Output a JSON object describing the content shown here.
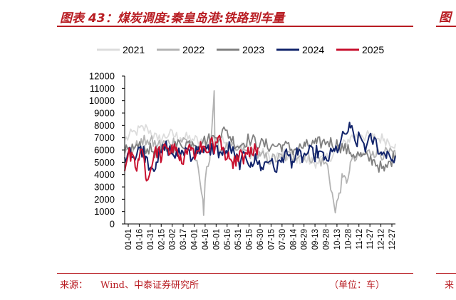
{
  "header": {
    "title": "图表 43：煤炭调度:秦皇岛港:铁路到车量",
    "right_fragment": "图"
  },
  "footer": {
    "source_label": "来源：",
    "source_text": "Wind、中泰证券研究所",
    "unit": "（单位：车）",
    "right_fragment": "来"
  },
  "colors": {
    "accent": "#b81c22",
    "s2021": "#dcdcdc",
    "s2022": "#b3b3b3",
    "s2023": "#808080",
    "s2024": "#12246b",
    "s2025": "#c8102e"
  },
  "chart_data": {
    "type": "line",
    "title": "",
    "xlabel": "",
    "ylabel": "",
    "ylim": [
      0,
      12000
    ],
    "yticks": [
      0,
      1000,
      2000,
      3000,
      4000,
      5000,
      6000,
      7000,
      8000,
      9000,
      10000,
      11000,
      12000
    ],
    "xtick_labels": [
      "01-01",
      "01-16",
      "01-31",
      "02-15",
      "03-02",
      "03-17",
      "04-01",
      "04-16",
      "05-01",
      "05-16",
      "05-31",
      "06-15",
      "06-30",
      "07-15",
      "07-30",
      "08-14",
      "08-29",
      "09-13",
      "09-28",
      "10-13",
      "10-28",
      "11-12",
      "11-27",
      "12-12",
      "12-27"
    ],
    "x_domain": [
      1,
      361
    ],
    "legend": {
      "position": "top",
      "entries": [
        "2021",
        "2022",
        "2023",
        "2024",
        "2025"
      ]
    },
    "grid": false,
    "series": [
      {
        "name": "2021",
        "points": [
          [
            1,
            6800
          ],
          [
            15,
            7500
          ],
          [
            31,
            7800
          ],
          [
            45,
            6800
          ],
          [
            60,
            7300
          ],
          [
            75,
            7000
          ],
          [
            91,
            6900
          ],
          [
            105,
            6500
          ],
          [
            121,
            6900
          ],
          [
            135,
            6600
          ],
          [
            151,
            6400
          ],
          [
            166,
            6100
          ],
          [
            181,
            5800
          ],
          [
            196,
            5300
          ],
          [
            211,
            5600
          ],
          [
            226,
            5400
          ],
          [
            241,
            5200
          ],
          [
            256,
            5000
          ],
          [
            271,
            5400
          ],
          [
            286,
            6000
          ],
          [
            301,
            7000
          ],
          [
            316,
            7200
          ],
          [
            331,
            7000
          ],
          [
            346,
            6900
          ],
          [
            361,
            6500
          ]
        ]
      },
      {
        "name": "2022",
        "points": [
          [
            1,
            5700
          ],
          [
            15,
            6200
          ],
          [
            31,
            6800
          ],
          [
            45,
            6400
          ],
          [
            60,
            6600
          ],
          [
            75,
            6800
          ],
          [
            91,
            6700
          ],
          [
            105,
            2000
          ],
          [
            106,
            700
          ],
          [
            108,
            3500
          ],
          [
            115,
            6000
          ],
          [
            120,
            10800
          ],
          [
            121,
            6000
          ],
          [
            135,
            6200
          ],
          [
            151,
            6000
          ],
          [
            166,
            5800
          ],
          [
            181,
            5500
          ],
          [
            196,
            5200
          ],
          [
            211,
            5400
          ],
          [
            226,
            5600
          ],
          [
            241,
            5500
          ],
          [
            256,
            5400
          ],
          [
            271,
            4700
          ],
          [
            281,
            900
          ],
          [
            286,
            2500
          ],
          [
            291,
            3800
          ],
          [
            296,
            3300
          ],
          [
            301,
            5000
          ],
          [
            316,
            5500
          ],
          [
            331,
            5900
          ],
          [
            346,
            5700
          ],
          [
            361,
            5600
          ]
        ]
      },
      {
        "name": "2023",
        "points": [
          [
            1,
            5800
          ],
          [
            15,
            6300
          ],
          [
            31,
            6100
          ],
          [
            45,
            5800
          ],
          [
            60,
            6100
          ],
          [
            75,
            6500
          ],
          [
            91,
            6600
          ],
          [
            105,
            6700
          ],
          [
            121,
            7000
          ],
          [
            135,
            7600
          ],
          [
            151,
            6300
          ],
          [
            166,
            6900
          ],
          [
            181,
            6500
          ],
          [
            196,
            6300
          ],
          [
            211,
            6400
          ],
          [
            226,
            6000
          ],
          [
            241,
            6300
          ],
          [
            256,
            6500
          ],
          [
            271,
            6700
          ],
          [
            286,
            6400
          ],
          [
            301,
            5800
          ],
          [
            316,
            5500
          ],
          [
            331,
            5200
          ],
          [
            346,
            4300
          ],
          [
            361,
            5600
          ]
        ]
      },
      {
        "name": "2024",
        "points": [
          [
            1,
            5400
          ],
          [
            8,
            6200
          ],
          [
            15,
            5200
          ],
          [
            22,
            6300
          ],
          [
            29,
            5500
          ],
          [
            36,
            4600
          ],
          [
            43,
            5000
          ],
          [
            50,
            5800
          ],
          [
            57,
            6300
          ],
          [
            64,
            5700
          ],
          [
            71,
            5500
          ],
          [
            78,
            5900
          ],
          [
            85,
            6100
          ],
          [
            92,
            5400
          ],
          [
            99,
            6200
          ],
          [
            106,
            5800
          ],
          [
            113,
            6000
          ],
          [
            120,
            6200
          ],
          [
            127,
            5800
          ],
          [
            134,
            5600
          ],
          [
            141,
            6300
          ],
          [
            148,
            5300
          ],
          [
            155,
            5000
          ],
          [
            162,
            5400
          ],
          [
            169,
            5000
          ],
          [
            176,
            5200
          ],
          [
            183,
            4600
          ],
          [
            190,
            5000
          ],
          [
            197,
            5300
          ],
          [
            203,
            4200
          ],
          [
            210,
            5400
          ],
          [
            217,
            5700
          ],
          [
            224,
            5100
          ],
          [
            231,
            5600
          ],
          [
            238,
            5400
          ],
          [
            245,
            5800
          ],
          [
            252,
            5600
          ],
          [
            259,
            5900
          ],
          [
            266,
            5200
          ],
          [
            273,
            5400
          ],
          [
            280,
            5900
          ],
          [
            287,
            6400
          ],
          [
            294,
            7300
          ],
          [
            301,
            7800
          ],
          [
            308,
            6600
          ],
          [
            315,
            7000
          ],
          [
            322,
            6200
          ],
          [
            329,
            6900
          ],
          [
            336,
            6500
          ],
          [
            343,
            5600
          ],
          [
            350,
            5900
          ],
          [
            357,
            5200
          ],
          [
            361,
            5500
          ]
        ]
      },
      {
        "name": "2025",
        "points": [
          [
            1,
            4300
          ],
          [
            5,
            5400
          ],
          [
            10,
            5800
          ],
          [
            15,
            4600
          ],
          [
            20,
            5200
          ],
          [
            25,
            5800
          ],
          [
            30,
            3500
          ],
          [
            35,
            4300
          ],
          [
            40,
            5600
          ],
          [
            45,
            6000
          ],
          [
            50,
            5200
          ],
          [
            55,
            6400
          ],
          [
            60,
            5600
          ],
          [
            65,
            5800
          ],
          [
            70,
            6200
          ],
          [
            75,
            5600
          ],
          [
            80,
            5300
          ],
          [
            85,
            6100
          ],
          [
            90,
            6200
          ],
          [
            95,
            5400
          ],
          [
            100,
            5900
          ],
          [
            105,
            6300
          ],
          [
            110,
            5800
          ],
          [
            115,
            6800
          ],
          [
            120,
            5700
          ],
          [
            125,
            7000
          ],
          [
            130,
            6000
          ],
          [
            135,
            5200
          ],
          [
            140,
            5300
          ],
          [
            145,
            4500
          ],
          [
            150,
            5600
          ],
          [
            155,
            6000
          ],
          [
            160,
            5400
          ],
          [
            165,
            6200
          ],
          [
            170,
            5700
          ],
          [
            175,
            6100
          ],
          [
            178,
            6200
          ]
        ]
      }
    ]
  }
}
